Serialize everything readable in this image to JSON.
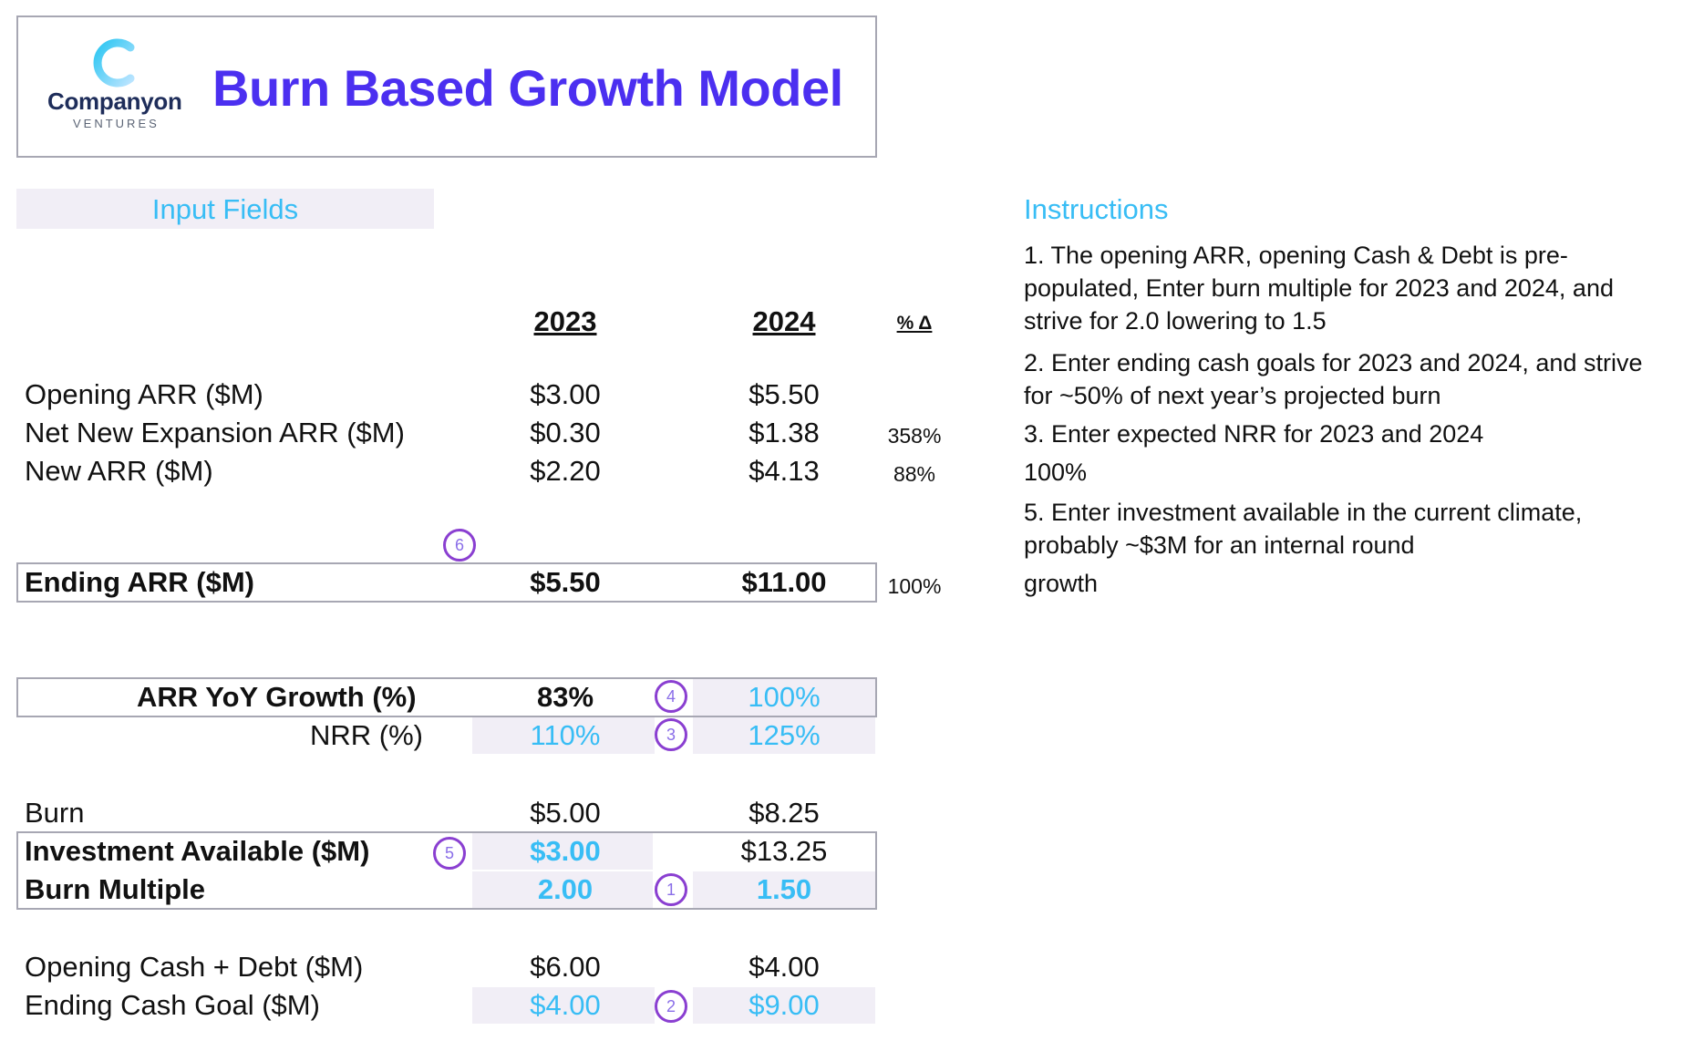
{
  "header": {
    "logo_name": "Companyon",
    "logo_sub": "VENTURES",
    "title": "Burn Based Growth Model"
  },
  "sections": {
    "input_fields": "Input Fields",
    "instructions_title": "Instructions"
  },
  "columns": {
    "y1": "2023",
    "y2": "2024",
    "pct": "% Δ"
  },
  "rows": {
    "opening_arr": {
      "label": "Opening ARR ($M)",
      "y1": "$3.00",
      "y2": "$5.50",
      "pct": ""
    },
    "net_new_expansion": {
      "label": "Net New Expansion ARR ($M)",
      "y1": "$0.30",
      "y2": "$1.38",
      "pct": "358%"
    },
    "new_arr": {
      "label": "New ARR ($M)",
      "y1": "$2.20",
      "y2": "$4.13",
      "pct": "88%"
    },
    "ending_arr": {
      "label": "Ending ARR ($M)",
      "y1": "$5.50",
      "y2": "$11.00",
      "pct": "100%"
    },
    "arr_yoy": {
      "label": "ARR YoY Growth (%)",
      "y1": "83%",
      "y2": "100%"
    },
    "nrr": {
      "label": "NRR (%)",
      "y1": "110%",
      "y2": "125%"
    },
    "burn": {
      "label": "Burn",
      "y1": "$5.00",
      "y2": "$8.25"
    },
    "investment": {
      "label": "Investment Available ($M)",
      "y1": "$3.00",
      "y2": "$13.25"
    },
    "burn_multiple": {
      "label": "Burn Multiple",
      "y1": "2.00",
      "y2": "1.50"
    },
    "opening_cash": {
      "label": "Opening Cash + Debt ($M)",
      "y1": "$6.00",
      "y2": "$4.00"
    },
    "ending_cash_goal": {
      "label": "Ending Cash Goal ($M)",
      "y1": "$4.00",
      "y2": "$9.00"
    }
  },
  "markers": {
    "m1": "1",
    "m2": "2",
    "m3": "3",
    "m4": "4",
    "m5": "5",
    "m6": "6"
  },
  "instructions": {
    "i1": "1. The opening ARR, opening Cash & Debt is pre-populated, Enter burn multiple for 2023 and 2024, and strive for 2.0 lowering to 1.5",
    "i2": "2. Enter ending cash goals for 2023 and 2024, and strive for ~50% of next year’s projected burn",
    "i3": "3. Enter expected NRR for 2023 and 2024",
    "i4": "100%",
    "i5": "5. Enter investment available in the current climate, probably ~$3M for an internal round",
    "i6": "growth"
  },
  "colors": {
    "title": "#4b2ff0",
    "input": "#38bdf5",
    "shade": "#f1eef6",
    "marker": "#8a3fd1"
  }
}
